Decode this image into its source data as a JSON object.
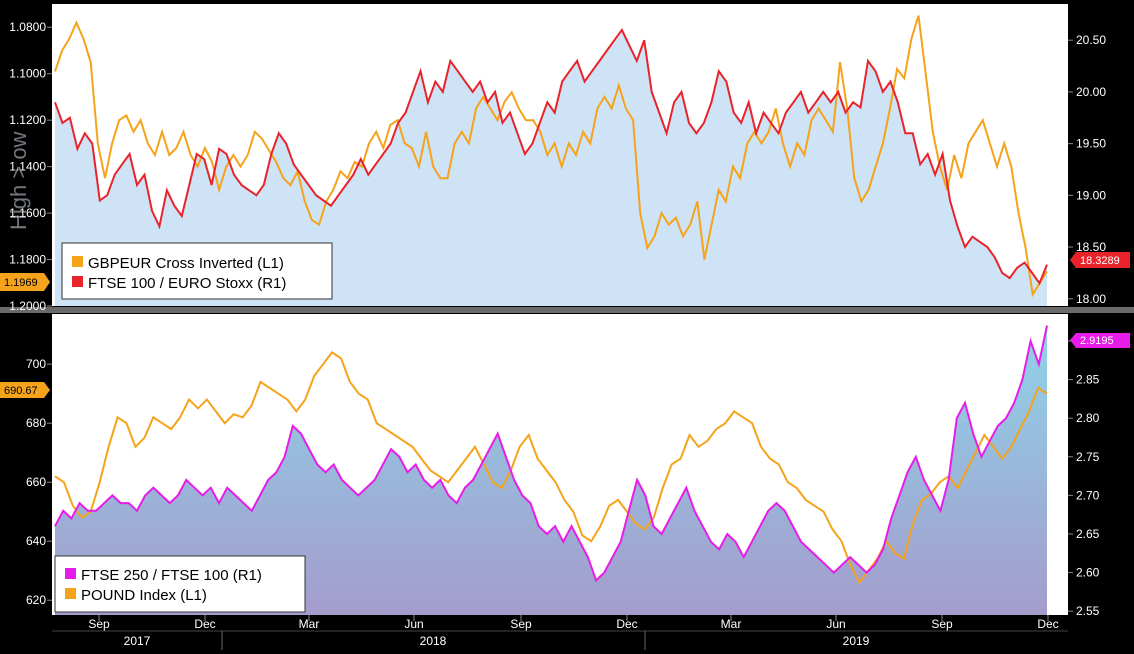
{
  "chart_data": [
    {
      "type": "line",
      "panel": "top",
      "legend": [
        {
          "label": "GBPEUR Cross Inverted (L1)",
          "color": "#f5a31a"
        },
        {
          "label": "FTSE 100 / EURO Stoxx (R1)",
          "color": "#e8232a"
        }
      ],
      "side_label": "High > ow",
      "left_axis": {
        "ticks": [
          "1.0800",
          "1.1000",
          "1.1200",
          "1.1400",
          "1.1600",
          "1.1800",
          "1.2000"
        ],
        "inverted": true,
        "ylim": [
          1.2,
          1.07
        ]
      },
      "right_axis": {
        "ticks": [
          "20.50",
          "20.00",
          "19.50",
          "19.00",
          "18.50",
          "18.00"
        ],
        "ylim": [
          17.93,
          20.85
        ]
      },
      "last_value_left": "1.1969",
      "last_value_right": "18.3289",
      "series": [
        {
          "name": "GBPEUR Cross Inverted (L1)",
          "axis": "left",
          "color": "#f5a31a",
          "values": [
            1.099,
            1.09,
            1.085,
            1.078,
            1.085,
            1.095,
            1.13,
            1.145,
            1.13,
            1.12,
            1.118,
            1.125,
            1.12,
            1.13,
            1.135,
            1.125,
            1.135,
            1.132,
            1.125,
            1.135,
            1.14,
            1.132,
            1.138,
            1.15,
            1.14,
            1.135,
            1.14,
            1.135,
            1.125,
            1.128,
            1.133,
            1.138,
            1.145,
            1.148,
            1.142,
            1.155,
            1.163,
            1.165,
            1.155,
            1.15,
            1.142,
            1.145,
            1.138,
            1.14,
            1.13,
            1.125,
            1.132,
            1.122,
            1.12,
            1.13,
            1.132,
            1.14,
            1.125,
            1.14,
            1.145,
            1.145,
            1.13,
            1.125,
            1.13,
            1.115,
            1.11,
            1.115,
            1.12,
            1.112,
            1.108,
            1.115,
            1.12,
            1.12,
            1.125,
            1.135,
            1.13,
            1.14,
            1.13,
            1.135,
            1.125,
            1.13,
            1.115,
            1.11,
            1.115,
            1.105,
            1.115,
            1.12,
            1.16,
            1.175,
            1.17,
            1.16,
            1.165,
            1.162,
            1.17,
            1.165,
            1.155,
            1.18,
            1.165,
            1.15,
            1.155,
            1.14,
            1.145,
            1.13,
            1.125,
            1.13,
            1.125,
            1.115,
            1.13,
            1.14,
            1.13,
            1.135,
            1.12,
            1.115,
            1.12,
            1.125,
            1.095,
            1.115,
            1.145,
            1.155,
            1.15,
            1.14,
            1.13,
            1.115,
            1.098,
            1.102,
            1.085,
            1.075,
            1.1,
            1.125,
            1.14,
            1.15,
            1.135,
            1.145,
            1.13,
            1.125,
            1.12,
            1.13,
            1.14,
            1.13,
            1.14,
            1.16,
            1.175,
            1.195,
            1.19,
            1.185
          ]
        },
        {
          "name": "FTSE 100 / EURO Stoxx (R1)",
          "axis": "right",
          "color": "#e8232a",
          "values": [
            19.9,
            19.7,
            19.75,
            19.45,
            19.6,
            19.5,
            18.95,
            19.0,
            19.2,
            19.3,
            19.4,
            19.1,
            19.2,
            18.85,
            18.7,
            19.05,
            18.9,
            18.8,
            19.1,
            19.4,
            19.35,
            19.1,
            19.45,
            19.4,
            19.2,
            19.1,
            19.05,
            19.0,
            19.1,
            19.4,
            19.6,
            19.5,
            19.3,
            19.2,
            19.1,
            19.0,
            18.95,
            18.9,
            19.0,
            19.1,
            19.2,
            19.35,
            19.2,
            19.3,
            19.4,
            19.5,
            19.7,
            19.8,
            20.0,
            20.2,
            19.9,
            20.1,
            20.0,
            20.3,
            20.2,
            20.1,
            20.0,
            20.1,
            19.9,
            20.0,
            19.7,
            19.8,
            19.6,
            19.4,
            19.5,
            19.7,
            19.9,
            19.8,
            20.1,
            20.2,
            20.3,
            20.1,
            20.2,
            20.3,
            20.4,
            20.5,
            20.6,
            20.45,
            20.3,
            20.5,
            20.0,
            19.8,
            19.6,
            19.9,
            20.0,
            19.7,
            19.6,
            19.7,
            19.9,
            20.2,
            20.1,
            19.8,
            19.7,
            19.9,
            19.6,
            19.8,
            19.7,
            19.6,
            19.8,
            19.9,
            20.0,
            19.8,
            19.9,
            20.0,
            19.9,
            20.0,
            19.8,
            19.9,
            19.85,
            20.3,
            20.2,
            20.0,
            20.1,
            19.9,
            19.6,
            19.6,
            19.3,
            19.4,
            19.2,
            19.4,
            18.95,
            18.7,
            18.5,
            18.6,
            18.55,
            18.5,
            18.4,
            18.25,
            18.2,
            18.3,
            18.35,
            18.25,
            18.15,
            18.33
          ]
        }
      ]
    },
    {
      "type": "line",
      "panel": "bottom",
      "legend": [
        {
          "label": "FTSE 250 / FTSE 100 (R1)",
          "color": "#e81ce8"
        },
        {
          "label": "POUND Index  (L1)",
          "color": "#f5a31a"
        }
      ],
      "left_axis": {
        "ticks": [
          "700",
          "680",
          "660",
          "640",
          "620"
        ],
        "ylim": [
          615,
          717
        ]
      },
      "right_axis": {
        "ticks": [
          "2.90",
          "2.85",
          "2.80",
          "2.75",
          "2.70",
          "2.65",
          "2.60",
          "2.55"
        ],
        "ylim": [
          2.545,
          2.935
        ]
      },
      "last_value_left": "690.67",
      "last_value_right": "2.9195",
      "x_axis": {
        "months": [
          "Sep",
          "Dec",
          "Mar",
          "Jun",
          "Sep",
          "Dec",
          "Mar",
          "Jun",
          "Sep",
          "Dec"
        ],
        "years": [
          "2017",
          "2018",
          "2019"
        ]
      },
      "series": [
        {
          "name": "FTSE 250 / FTSE 100 (R1)",
          "axis": "right",
          "color": "#e81ce8",
          "values": [
            2.66,
            2.68,
            2.67,
            2.69,
            2.68,
            2.68,
            2.69,
            2.7,
            2.69,
            2.69,
            2.68,
            2.7,
            2.71,
            2.7,
            2.69,
            2.7,
            2.72,
            2.71,
            2.7,
            2.71,
            2.69,
            2.71,
            2.7,
            2.69,
            2.68,
            2.7,
            2.72,
            2.73,
            2.75,
            2.79,
            2.78,
            2.76,
            2.74,
            2.73,
            2.74,
            2.72,
            2.71,
            2.7,
            2.71,
            2.72,
            2.74,
            2.76,
            2.75,
            2.73,
            2.74,
            2.72,
            2.71,
            2.72,
            2.7,
            2.69,
            2.71,
            2.72,
            2.74,
            2.76,
            2.78,
            2.75,
            2.72,
            2.7,
            2.69,
            2.66,
            2.65,
            2.66,
            2.64,
            2.66,
            2.64,
            2.62,
            2.59,
            2.6,
            2.62,
            2.64,
            2.68,
            2.72,
            2.7,
            2.66,
            2.65,
            2.67,
            2.69,
            2.71,
            2.68,
            2.66,
            2.64,
            2.63,
            2.65,
            2.64,
            2.62,
            2.64,
            2.66,
            2.68,
            2.69,
            2.68,
            2.66,
            2.64,
            2.63,
            2.62,
            2.61,
            2.6,
            2.61,
            2.62,
            2.61,
            2.6,
            2.61,
            2.63,
            2.67,
            2.7,
            2.73,
            2.75,
            2.72,
            2.7,
            2.68,
            2.72,
            2.8,
            2.82,
            2.78,
            2.75,
            2.77,
            2.79,
            2.8,
            2.82,
            2.85,
            2.9,
            2.87,
            2.92
          ]
        },
        {
          "name": "POUND Index  (L1)",
          "axis": "left",
          "color": "#f5a31a",
          "values": [
            662,
            660,
            652,
            648,
            650,
            660,
            672,
            682,
            680,
            672,
            675,
            682,
            680,
            678,
            682,
            688,
            685,
            688,
            684,
            680,
            683,
            682,
            686,
            694,
            692,
            690,
            688,
            684,
            688,
            696,
            700,
            704,
            702,
            694,
            690,
            688,
            680,
            678,
            676,
            674,
            672,
            668,
            664,
            662,
            660,
            664,
            668,
            672,
            666,
            660,
            658,
            664,
            672,
            676,
            668,
            664,
            660,
            654,
            650,
            642,
            640,
            645,
            652,
            654,
            650,
            646,
            644,
            648,
            658,
            666,
            668,
            676,
            672,
            674,
            678,
            680,
            684,
            682,
            680,
            672,
            668,
            666,
            660,
            658,
            654,
            652,
            650,
            644,
            640,
            632,
            626,
            630,
            634,
            640,
            636,
            634,
            646,
            654,
            656,
            660,
            662,
            658,
            664,
            670,
            676,
            672,
            668,
            672,
            678,
            684,
            692,
            690
          ]
        }
      ]
    }
  ]
}
